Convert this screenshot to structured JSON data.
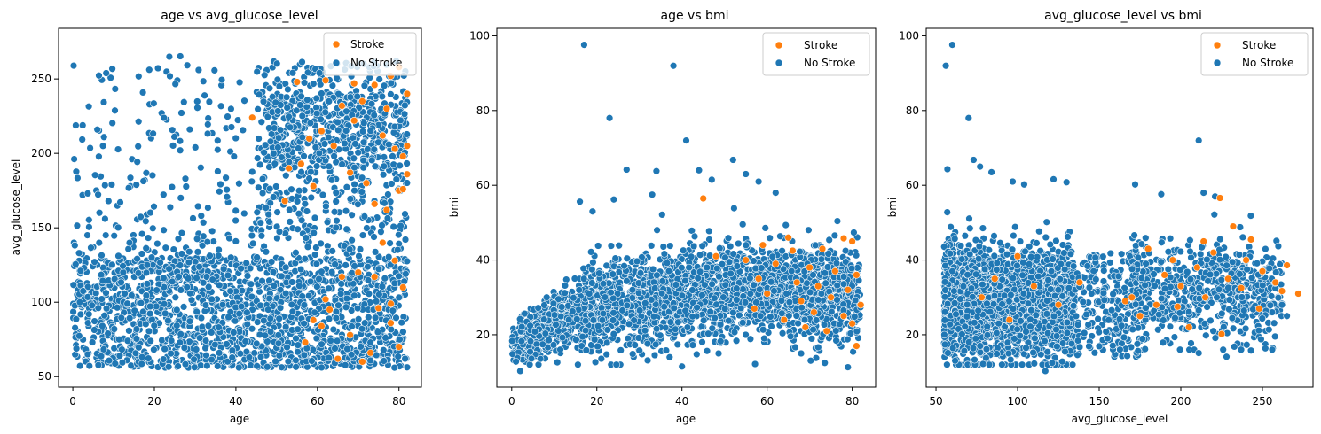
{
  "colors": {
    "stroke": "#ff7f0e",
    "no_stroke": "#1f77b4",
    "point_edge": "#ffffff",
    "axes": "#000000"
  },
  "legend": {
    "position": "top-right",
    "entries": [
      "Stroke",
      "No Stroke"
    ]
  },
  "chart_data": [
    {
      "type": "scatter",
      "title": "age vs avg_glucose_level",
      "xlabel": "age",
      "ylabel": "avg_glucose_level",
      "xlim": [
        -3.5,
        85.5
      ],
      "ylim": [
        43,
        284
      ],
      "xticks": [
        0,
        20,
        40,
        60,
        80
      ],
      "yticks": [
        50,
        100,
        150,
        200,
        250
      ],
      "grid": false,
      "series": [
        {
          "name": "No Stroke",
          "cloud": [
            {
              "n": 1650,
              "x": [
                0.1,
                82
              ],
              "y": [
                56,
                130
              ],
              "shape": "uniform"
            },
            {
              "n": 220,
              "x": [
                0.1,
                50
              ],
              "y": [
                130,
                268
              ],
              "shape": "sparse-decay"
            },
            {
              "n": 520,
              "x": [
                45,
                82
              ],
              "y": [
                130,
                262
              ],
              "shape": "uniform"
            },
            {
              "n": 280,
              "x": [
                48,
                82
              ],
              "y": [
                190,
                240
              ],
              "shape": "uniform"
            }
          ]
        },
        {
          "name": "Stroke",
          "points": [
            [
              55,
              248
            ],
            [
              62,
              249
            ],
            [
              69,
              247
            ],
            [
              74,
              246
            ],
            [
              78,
              252
            ],
            [
              80,
              258
            ],
            [
              71,
              235
            ],
            [
              66,
              232
            ],
            [
              61,
              215
            ],
            [
              58,
              210
            ],
            [
              76,
              212
            ],
            [
              64,
              205
            ],
            [
              79,
              203
            ],
            [
              81,
              198
            ],
            [
              53,
              190
            ],
            [
              68,
              187
            ],
            [
              82,
              186
            ],
            [
              72,
              180
            ],
            [
              59,
              178
            ],
            [
              80,
              175
            ],
            [
              77,
              162
            ],
            [
              81,
              176
            ],
            [
              74,
              166
            ],
            [
              56,
              193
            ],
            [
              82,
              205
            ],
            [
              52,
              168
            ],
            [
              79,
              128
            ],
            [
              76,
              140
            ],
            [
              70,
              120
            ],
            [
              66,
              117
            ],
            [
              81,
              110
            ],
            [
              75,
              96
            ],
            [
              63,
              95
            ],
            [
              59,
              88
            ],
            [
              78,
              86
            ],
            [
              68,
              78
            ],
            [
              57,
              73
            ],
            [
              80,
              70
            ],
            [
              73,
              66
            ],
            [
              65,
              62
            ],
            [
              71,
              60
            ],
            [
              62,
              102
            ],
            [
              82,
              240
            ],
            [
              77,
              230
            ],
            [
              69,
              222
            ],
            [
              44,
              224
            ],
            [
              78,
              99
            ],
            [
              74,
              117
            ],
            [
              61,
              84
            ]
          ]
        }
      ]
    },
    {
      "type": "scatter",
      "title": "age vs bmi",
      "xlabel": "age",
      "ylabel": "bmi",
      "xlim": [
        -3.5,
        85.5
      ],
      "ylim": [
        6,
        102
      ],
      "xticks": [
        0,
        20,
        40,
        60,
        80
      ],
      "yticks": [
        20,
        40,
        60,
        80,
        100
      ],
      "grid": false,
      "series": [
        {
          "name": "No Stroke",
          "cloud": [
            {
              "n": 2700,
              "x": [
                0.1,
                82
              ],
              "y": [
                12,
                56
              ],
              "shape": "age-dependent-bmi"
            }
          ],
          "points": [
            [
              17,
              97.6
            ],
            [
              38,
              92
            ],
            [
              23,
              78
            ],
            [
              41,
              72
            ],
            [
              16,
              55.6
            ],
            [
              52,
              66.8
            ],
            [
              44,
              64
            ],
            [
              27,
              64.2
            ],
            [
              34,
              63.8
            ],
            [
              58,
              61
            ],
            [
              62,
              58
            ],
            [
              47,
              61.5
            ],
            [
              55,
              63
            ],
            [
              40,
              11.5
            ],
            [
              79,
              11.3
            ],
            [
              2,
              10.3
            ],
            [
              1,
              12.8
            ],
            [
              81,
              16.9
            ],
            [
              68,
              15
            ],
            [
              30,
              15.8
            ],
            [
              33,
              57.5
            ],
            [
              19,
              53
            ],
            [
              24,
              56.2
            ]
          ]
        },
        {
          "name": "Stroke",
          "points": [
            [
              78,
              45.8
            ],
            [
              80,
              45
            ],
            [
              73,
              43
            ],
            [
              65,
              46
            ],
            [
              48,
              41
            ],
            [
              55,
              40
            ],
            [
              62,
              39
            ],
            [
              70,
              38
            ],
            [
              76,
              37
            ],
            [
              81,
              36
            ],
            [
              58,
              35
            ],
            [
              67,
              34
            ],
            [
              72,
              33
            ],
            [
              79,
              32
            ],
            [
              60,
              31
            ],
            [
              75,
              30
            ],
            [
              68,
              29
            ],
            [
              82,
              28
            ],
            [
              57,
              27
            ],
            [
              71,
              26
            ],
            [
              78,
              25
            ],
            [
              64,
              24
            ],
            [
              80,
              23
            ],
            [
              69,
              22
            ],
            [
              74,
              21
            ],
            [
              81,
              17
            ],
            [
              45,
              56.5
            ],
            [
              66,
              42.5
            ],
            [
              59,
              44
            ]
          ]
        }
      ]
    },
    {
      "type": "scatter",
      "title": "avg_glucose_level vs bmi",
      "xlabel": "avg_glucose_level",
      "ylabel": "bmi",
      "xlim": [
        44,
        281
      ],
      "ylim": [
        6,
        102
      ],
      "xticks": [
        50,
        100,
        150,
        200,
        250
      ],
      "yticks": [
        20,
        40,
        60,
        80,
        100
      ],
      "grid": false,
      "series": [
        {
          "name": "No Stroke",
          "cloud": [
            {
              "n": 2500,
              "x": [
                55,
                135
              ],
              "y": [
                12,
                56
              ],
              "shape": "dense-left"
            },
            {
              "n": 260,
              "x": [
                135,
                180
              ],
              "y": [
                14,
                42
              ],
              "shape": "uniform"
            },
            {
              "n": 620,
              "x": [
                170,
                262
              ],
              "y": [
                16,
                54
              ],
              "shape": "bmi-centered-32"
            }
          ],
          "points": [
            [
              60,
              97.6
            ],
            [
              56,
              92
            ],
            [
              70,
              78
            ],
            [
              211,
              72
            ],
            [
              73,
              66.8
            ],
            [
              77,
              65
            ],
            [
              57,
              64.3
            ],
            [
              84,
              63.5
            ],
            [
              172,
              60.2
            ],
            [
              188,
              57.6
            ],
            [
              122,
              61.6
            ],
            [
              130,
              60.8
            ],
            [
              104,
              60.2
            ],
            [
              97,
              61
            ],
            [
              214,
              58
            ],
            [
              221,
              57
            ],
            [
              117,
              10.3
            ],
            [
              228,
              14.1
            ],
            [
              243,
              15.8
            ],
            [
              211,
              15.1
            ],
            [
              256,
              26
            ],
            [
              265,
              25
            ],
            [
              262,
              28
            ]
          ]
        },
        {
          "name": "Stroke",
          "points": [
            [
              272,
              31
            ],
            [
              265,
              38.6
            ],
            [
              262,
              31.7
            ],
            [
              250,
              37
            ],
            [
              243,
              45.5
            ],
            [
              240,
              40
            ],
            [
              232,
              49
            ],
            [
              229,
              35
            ],
            [
              224,
              56.6
            ],
            [
              220,
              42
            ],
            [
              215,
              30
            ],
            [
              210,
              38
            ],
            [
              205,
              22
            ],
            [
              200,
              33
            ],
            [
              195,
              40
            ],
            [
              190,
              36
            ],
            [
              185,
              28
            ],
            [
              180,
              43
            ],
            [
              175,
              25
            ],
            [
              170,
              30
            ],
            [
              166,
              29
            ],
            [
              225,
              20.2
            ],
            [
              248,
              27
            ],
            [
              258,
              34
            ],
            [
              237,
              32.5
            ],
            [
              198,
              27.5
            ],
            [
              214,
              45
            ],
            [
              86,
              35
            ],
            [
              95,
              24
            ],
            [
              110,
              33
            ],
            [
              125,
              28
            ],
            [
              100,
              41
            ],
            [
              78,
              30
            ],
            [
              138,
              34
            ]
          ]
        }
      ]
    }
  ]
}
